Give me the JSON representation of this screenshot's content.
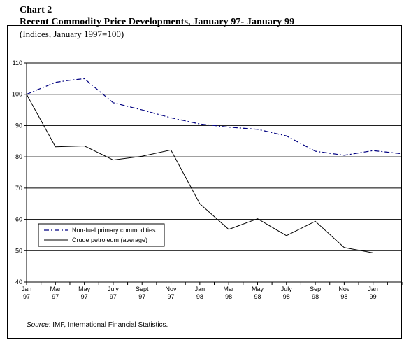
{
  "header": {
    "label": "Chart 2",
    "title": "Recent Commodity Price Developments, January 97- January 99",
    "subtitle": "(Indices, January 1997=100)"
  },
  "source": {
    "prefix": "Source",
    "text": ": IMF, International Financial Statistics."
  },
  "chart_data": {
    "type": "line",
    "x_ticks": [
      [
        "Jan",
        "97"
      ],
      [
        "Mar",
        "97"
      ],
      [
        "May",
        "97"
      ],
      [
        "July",
        "97"
      ],
      [
        "Sept",
        "97"
      ],
      [
        "Nov",
        "97"
      ],
      [
        "Jan",
        "98"
      ],
      [
        "Mar",
        "98"
      ],
      [
        "May",
        "98"
      ],
      [
        "July",
        "98"
      ],
      [
        "Sep",
        "98"
      ],
      [
        "Nov",
        "98"
      ],
      [
        "Jan",
        "99"
      ]
    ],
    "ylim": [
      40,
      110
    ],
    "y_ticks": [
      40,
      50,
      60,
      70,
      80,
      90,
      100,
      110
    ],
    "grid": "horizontal",
    "legend_position": "lower-left",
    "series": [
      {
        "name": "Non-fuel primary commodities",
        "style": "dash-dot",
        "color": "#000080",
        "points": [
          [
            0,
            100
          ],
          [
            2,
            103.8
          ],
          [
            3,
            104.5
          ],
          [
            4,
            105
          ],
          [
            6,
            97.3
          ],
          [
            8,
            95
          ],
          [
            10,
            92.5
          ],
          [
            12,
            90.5
          ],
          [
            14,
            89.5
          ],
          [
            16,
            88.8
          ],
          [
            18,
            86.7
          ],
          [
            20,
            81.8
          ],
          [
            22,
            80.5
          ],
          [
            24,
            82
          ],
          [
            26,
            81
          ]
        ]
      },
      {
        "name": "Crude petroleum (average)",
        "style": "solid",
        "color": "#000000",
        "points": [
          [
            0,
            100
          ],
          [
            2,
            83.2
          ],
          [
            4,
            83.5
          ],
          [
            6,
            79
          ],
          [
            8,
            80.2
          ],
          [
            10,
            82.2
          ],
          [
            12,
            65
          ],
          [
            14,
            56.8
          ],
          [
            16,
            60.2
          ],
          [
            18,
            54.8
          ],
          [
            20,
            59.4
          ],
          [
            22,
            51
          ],
          [
            24,
            49.3
          ]
        ]
      }
    ]
  }
}
